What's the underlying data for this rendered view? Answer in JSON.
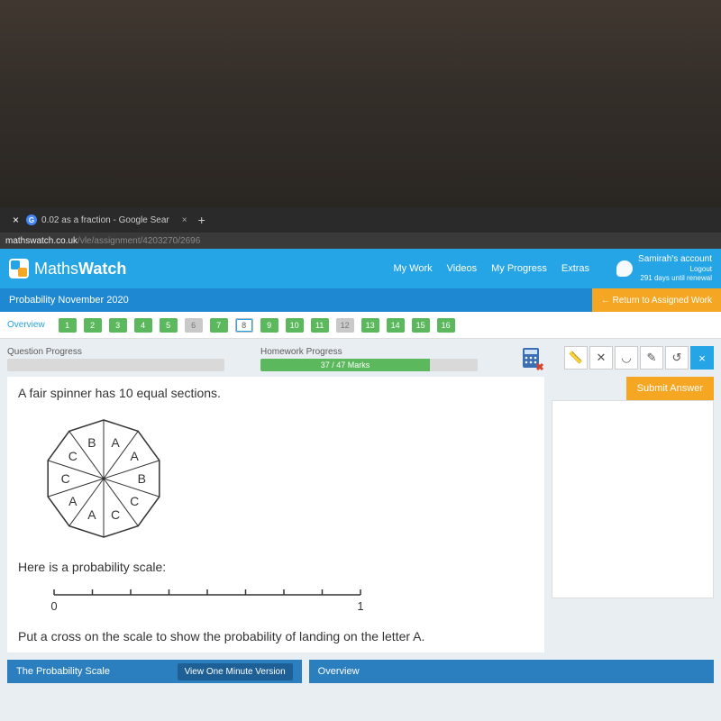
{
  "browser": {
    "tab_title": "0.02 as a fraction - Google Sear",
    "url_host": "mathswatch.co.uk",
    "url_path": "/vle/assignment/4203270/2696"
  },
  "header": {
    "logo_a": "Maths",
    "logo_b": "Watch",
    "nav": [
      "My Work",
      "Videos",
      "My Progress",
      "Extras"
    ],
    "account_name": "Samirah's account",
    "logout": "Logout",
    "days": "291 days until renewal"
  },
  "assignment": {
    "title": "Probability November 2020",
    "return": "← Return to Assigned Work"
  },
  "qnav": {
    "overview": "Overview",
    "nums": [
      {
        "n": "1",
        "s": "green"
      },
      {
        "n": "2",
        "s": "green"
      },
      {
        "n": "3",
        "s": "green"
      },
      {
        "n": "4",
        "s": "green"
      },
      {
        "n": "5",
        "s": "green"
      },
      {
        "n": "6",
        "s": "gray"
      },
      {
        "n": "7",
        "s": "green"
      },
      {
        "n": "8",
        "s": "current"
      },
      {
        "n": "9",
        "s": "green"
      },
      {
        "n": "10",
        "s": "green"
      },
      {
        "n": "11",
        "s": "green"
      },
      {
        "n": "12",
        "s": "gray"
      },
      {
        "n": "13",
        "s": "green"
      },
      {
        "n": "14",
        "s": "green"
      },
      {
        "n": "15",
        "s": "green"
      },
      {
        "n": "16",
        "s": "green"
      }
    ]
  },
  "progress": {
    "q_label": "Question Progress",
    "hw_label": "Homework Progress",
    "hw_text": "37 / 47 Marks",
    "hw_pct": 78
  },
  "question": {
    "line1": "A fair spinner has 10 equal sections.",
    "spinner_labels": [
      "A",
      "A",
      "B",
      "C",
      "C",
      "A",
      "A",
      "C",
      "C",
      "B"
    ],
    "line2": "Here is a probability scale:",
    "scale_min": "0",
    "scale_max": "1",
    "line3": "Put a cross on the scale to show the probability of landing on the letter A."
  },
  "side": {
    "submit": "Submit Answer",
    "tools": [
      "ruler-icon",
      "compass-icon",
      "protractor-icon",
      "pencil-icon",
      "undo-icon",
      "close-icon"
    ]
  },
  "bottom": {
    "card1_title": "The Probability Scale",
    "card1_btn": "View One Minute Version",
    "card2_title": "Overview"
  }
}
